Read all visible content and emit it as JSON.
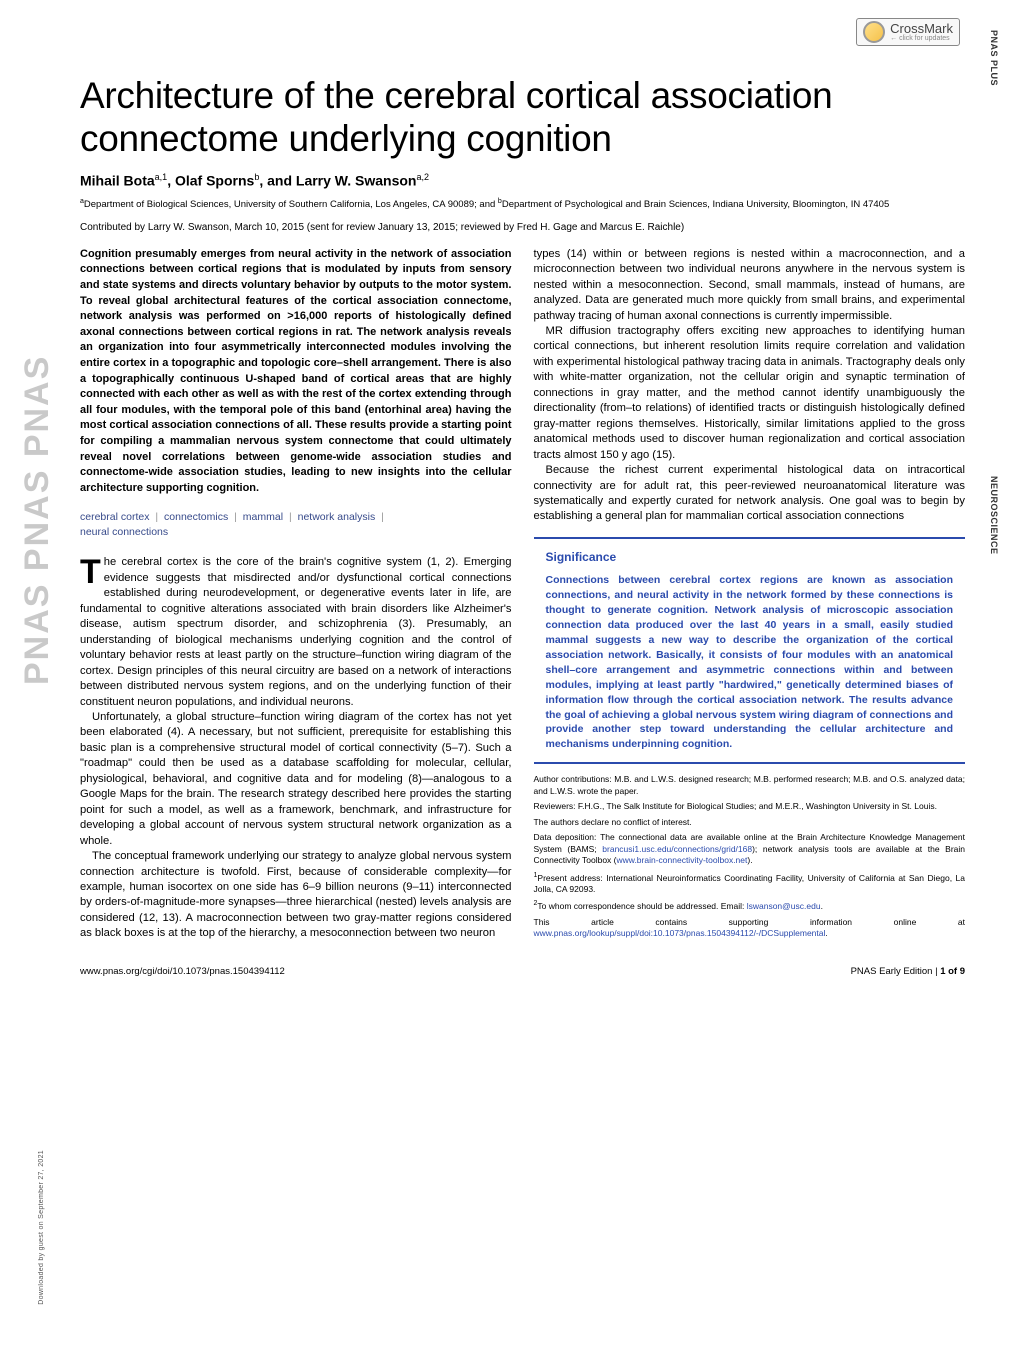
{
  "sidebar_text": "PNAS   PNAS   PNAS",
  "downloaded": "Downloaded by guest on September 27, 2021",
  "crossmark": {
    "main": "CrossMark",
    "sub": "← click for updates"
  },
  "right_tabs": {
    "plus": "PNAS PLUS",
    "neuro": "NEUROSCIENCE"
  },
  "title": "Architecture of the cerebral cortical association connectome underlying cognition",
  "authors_html": "Mihail Bota",
  "author1": "Mihail Bota",
  "author1_sup": "a,1",
  "author2": ", Olaf Sporns",
  "author2_sup": "b",
  "author3": ", and Larry W. Swanson",
  "author3_sup": "a,2",
  "affiliations_a": "a",
  "affiliations_a_text": "Department of Biological Sciences, University of Southern California, Los Angeles, CA 90089; and ",
  "affiliations_b": "b",
  "affiliations_b_text": "Department of Psychological and Brain Sciences, Indiana University, Bloomington, IN 47405",
  "contributed": "Contributed by Larry W. Swanson, March 10, 2015 (sent for review January 13, 2015; reviewed by Fred H. Gage and Marcus E. Raichle)",
  "abstract": "Cognition presumably emerges from neural activity in the network of association connections between cortical regions that is modulated by inputs from sensory and state systems and directs voluntary behavior by outputs to the motor system. To reveal global architectural features of the cortical association connectome, network analysis was performed on >16,000 reports of histologically defined axonal connections between cortical regions in rat. The network analysis reveals an organization into four asymmetrically interconnected modules involving the entire cortex in a topographic and topologic core–shell arrangement. There is also a topographically continuous U-shaped band of cortical areas that are highly connected with each other as well as with the rest of the cortex extending through all four modules, with the temporal pole of this band (entorhinal area) having the most cortical association connections of all. These results provide a starting point for compiling a mammalian nervous system connectome that could ultimately reveal novel correlations between genome-wide association studies and connectome-wide association studies, leading to new insights into the cellular architecture supporting cognition.",
  "keywords": [
    "cerebral cortex",
    "connectomics",
    "mammal",
    "network analysis",
    "neural connections"
  ],
  "col1_p1": "The cerebral cortex is the core of the brain's cognitive system (1, 2). Emerging evidence suggests that misdirected and/or dysfunctional cortical connections established during neurodevelopment, or degenerative events later in life, are fundamental to cognitive alterations associated with brain disorders like Alzheimer's disease, autism spectrum disorder, and schizophrenia (3). Presumably, an understanding of biological mechanisms underlying cognition and the control of voluntary behavior rests at least partly on the structure–function wiring diagram of the cortex. Design principles of this neural circuitry are based on a network of interactions between distributed nervous system regions, and on the underlying function of their constituent neuron populations, and individual neurons.",
  "col1_p2": "Unfortunately, a global structure–function wiring diagram of the cortex has not yet been elaborated (4). A necessary, but not sufficient, prerequisite for establishing this basic plan is a comprehensive structural model of cortical connectivity (5–7). Such a \"roadmap\" could then be used as a database scaffolding for molecular, cellular, physiological, behavioral, and cognitive data and for modeling (8)—analogous to a Google Maps for the brain. The research strategy described here provides the starting point for such a model, as well as a framework, benchmark, and infrastructure for developing a global account of nervous system structural network organization as a whole.",
  "col1_p3": "The conceptual framework underlying our strategy to analyze global nervous system connection architecture is twofold. First, because of considerable complexity—for example, human isocortex on one side has 6–9 billion neurons (9–11) interconnected by orders-of-magnitude-more synapses—three hierarchical (nested) levels analysis are considered (12, 13). A macroconnection between two gray-matter regions considered as black boxes is at the top of the hierarchy, a mesoconnection between two neuron",
  "col2_p1": "types (14) within or between regions is nested within a macroconnection, and a microconnection between two individual neurons anywhere in the nervous system is nested within a mesoconnection. Second, small mammals, instead of humans, are analyzed. Data are generated much more quickly from small brains, and experimental pathway tracing of human axonal connections is currently impermissible.",
  "col2_p2": "MR diffusion tractography offers exciting new approaches to identifying human cortical connections, but inherent resolution limits require correlation and validation with experimental histological pathway tracing data in animals. Tractography deals only with white-matter organization, not the cellular origin and synaptic termination of connections in gray matter, and the method cannot identify unambiguously the directionality (from–to relations) of identified tracts or distinguish histologically defined gray-matter regions themselves. Historically, similar limitations applied to the gross anatomical methods used to discover human regionalization and cortical association tracts almost 150 y ago (15).",
  "col2_p3": "Because the richest current experimental histological data on intracortical connectivity are for adult rat, this peer-reviewed neuroanatomical literature was systematically and expertly curated for network analysis. One goal was to begin by establishing a general plan for mammalian cortical association connections",
  "significance_title": "Significance",
  "significance_body": "Connections between cerebral cortex regions are known as association connections, and neural activity in the network formed by these connections is thought to generate cognition. Network analysis of microscopic association connection data produced over the last 40 years in a small, easily studied mammal suggests a new way to describe the organization of the cortical association network. Basically, it consists of four modules with an anatomical shell–core arrangement and asymmetric connections within and between modules, implying at least partly \"hardwired,\" genetically determined biases of information flow through the cortical association network. The results advance the goal of achieving a global nervous system wiring diagram of connections and provide another step toward understanding the cellular architecture and mechanisms underpinning cognition.",
  "notes": {
    "author_contrib": "Author contributions: M.B. and L.W.S. designed research; M.B. performed research; M.B. and O.S. analyzed data; and L.W.S. wrote the paper.",
    "reviewers": "Reviewers: F.H.G., The Salk Institute for Biological Studies; and M.E.R., Washington University in St. Louis.",
    "conflict": "The authors declare no conflict of interest.",
    "data_pre": "Data deposition: The connectional data are available online at the Brain Architecture Knowledge Management System (BAMS; ",
    "data_link1": "brancusi1.usc.edu/connections/grid/168",
    "data_mid": "); network analysis tools are available at the Brain Connectivity Toolbox (",
    "data_link2": "www.brain-connectivity-toolbox.net",
    "data_post": ").",
    "note1_sup": "1",
    "note1": "Present address: International Neuroinformatics Coordinating Facility, University of California at San Diego, La Jolla, CA 92093.",
    "note2_sup": "2",
    "note2_pre": "To whom correspondence should be addressed. Email: ",
    "note2_email": "lswanson@usc.edu",
    "note2_post": ".",
    "supp_pre": "This article contains supporting information online at ",
    "supp_link": "www.pnas.org/lookup/suppl/doi:10.1073/pnas.1504394112/-/DCSupplemental",
    "supp_post": "."
  },
  "footer": {
    "left": "www.pnas.org/cgi/doi/10.1073/pnas.1504394112",
    "right_pre": "PNAS Early Edition",
    "right_sep": " | ",
    "right_page": "1 of 9"
  },
  "colors": {
    "link": "#2b4bad",
    "sig_border": "#2b4bad",
    "keyword": "#374a8a",
    "sidebar_gray": "#c9c9c9"
  }
}
